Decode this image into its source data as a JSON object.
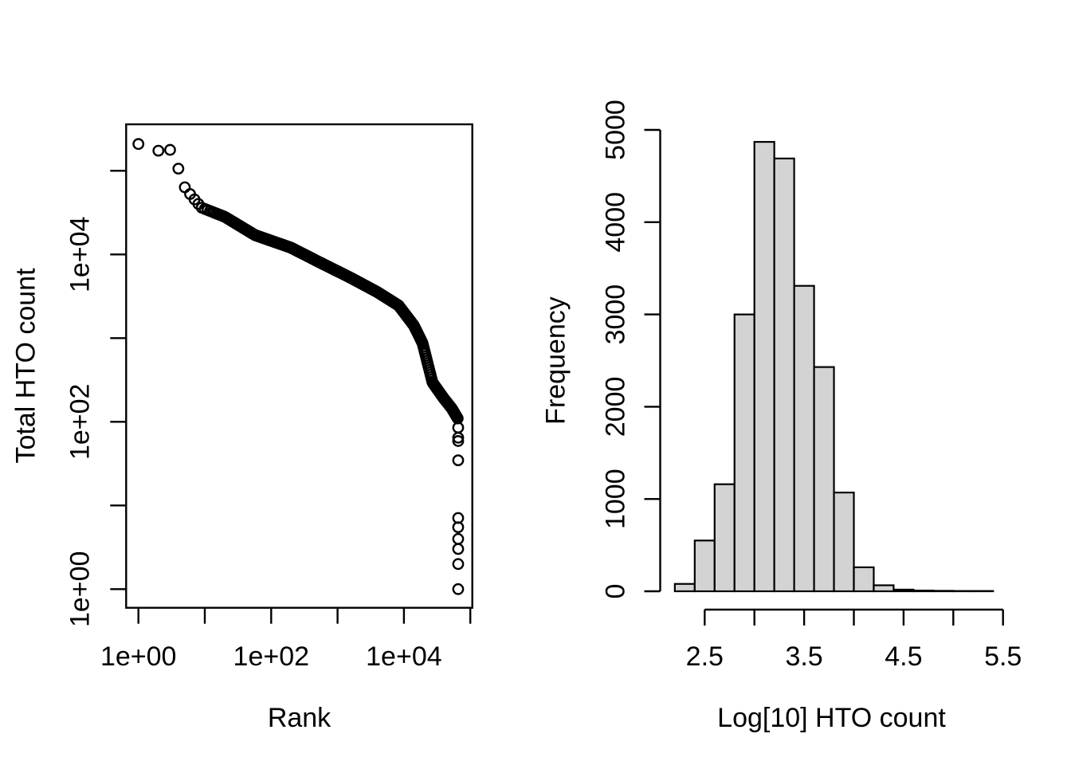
{
  "figure": {
    "background": "#ffffff",
    "foreground": "#000000",
    "description": "Two-panel R plot: barcode rank knee plot and HTO count histogram"
  },
  "chart_data": [
    {
      "type": "scatter",
      "name": "barcode-rank-knee-plot",
      "title": "",
      "xlabel": "Rank",
      "ylabel": "Total HTO count",
      "x_scale": "log10",
      "y_scale": "log10",
      "xlim_log10": [
        -0.19,
        5.03
      ],
      "ylim_log10": [
        -0.22,
        5.55
      ],
      "x_ticks": [
        "1e+00",
        "1e+01",
        "1e+02",
        "1e+03",
        "1e+04",
        "1e+05"
      ],
      "x_tick_labels_shown": [
        "1e+00",
        "1e+02",
        "1e+04"
      ],
      "y_ticks": [
        "1e+00",
        "1e+01",
        "1e+02",
        "1e+03",
        "1e+04",
        "1e+05"
      ],
      "y_tick_labels_shown": [
        "1e+00",
        "1e+02",
        "1e+04"
      ],
      "marker": "open-circle",
      "marker_color": "#000000",
      "grid": false,
      "curve_points_log10": [
        [
          0.0,
          5.32
        ],
        [
          0.3,
          5.24
        ],
        [
          0.48,
          5.25
        ],
        [
          0.6,
          5.03
        ],
        [
          0.7,
          4.8
        ],
        [
          0.8,
          4.7
        ],
        [
          0.95,
          4.56
        ],
        [
          1.3,
          4.45
        ],
        [
          1.76,
          4.23
        ],
        [
          2.3,
          4.08
        ],
        [
          2.72,
          3.91
        ],
        [
          3.2,
          3.72
        ],
        [
          3.6,
          3.55
        ],
        [
          3.92,
          3.39
        ],
        [
          4.15,
          3.15
        ],
        [
          4.28,
          2.94
        ],
        [
          4.43,
          2.47
        ],
        [
          4.6,
          2.28
        ],
        [
          4.72,
          2.16
        ],
        [
          4.81,
          2.04
        ]
      ],
      "tail_log10_rank": 4.817,
      "tail_log10_counts": [
        1.93,
        1.81,
        1.77,
        1.54,
        0.85,
        0.74,
        0.6,
        0.48,
        0.3,
        0.0
      ]
    },
    {
      "type": "bar",
      "name": "hto-count-histogram",
      "title": "",
      "xlabel": "Log[10] HTO count",
      "ylabel": "Frequency",
      "bin_start": 2.2,
      "bin_width": 0.2,
      "bin_edges": [
        2.2,
        2.4,
        2.6,
        2.8,
        3.0,
        3.2,
        3.4,
        3.6,
        3.8,
        4.0,
        4.2,
        4.4,
        4.6,
        4.8,
        5.0,
        5.2,
        5.4
      ],
      "frequencies": [
        80,
        550,
        1160,
        3000,
        4870,
        4690,
        3310,
        2430,
        1070,
        260,
        65,
        18,
        8,
        5,
        3,
        3
      ],
      "x_ticks": [
        2.5,
        3.0,
        3.5,
        4.0,
        4.5,
        5.0,
        5.5
      ],
      "x_tick_labels_shown": [
        "2.5",
        "3.5",
        "4.5",
        "5.5"
      ],
      "y_ticks": [
        0,
        1000,
        2000,
        3000,
        4000,
        5000
      ],
      "xlim": [
        2.5,
        5.5
      ],
      "ylim": [
        0,
        5000
      ],
      "grid": false,
      "bar_fill": "#d3d3d3",
      "bar_stroke": "#000000"
    }
  ]
}
